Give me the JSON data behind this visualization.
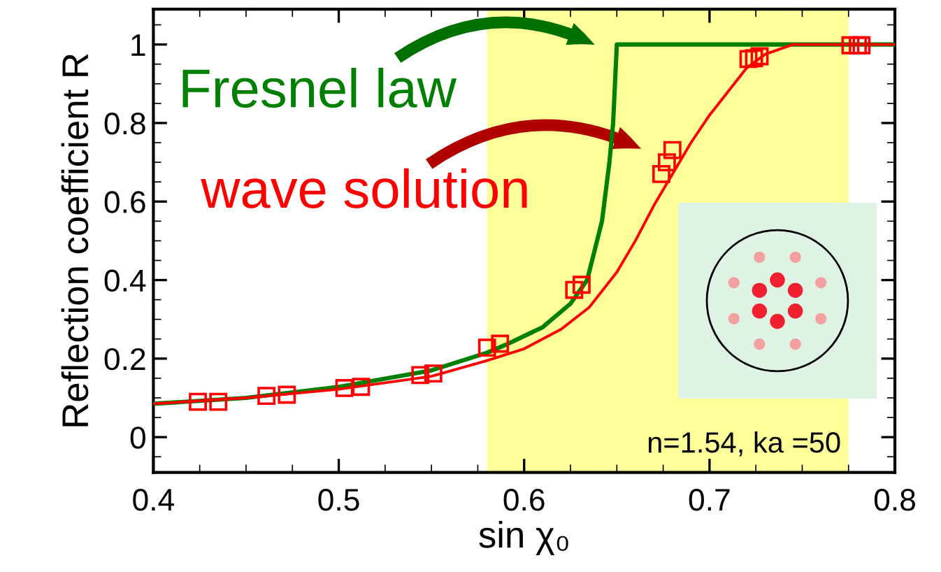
{
  "chart_data": {
    "type": "line",
    "xlabel": "sin χ₀",
    "ylabel": "Reflection coefficient R",
    "xlim": [
      0.4,
      0.8
    ],
    "xticks": [
      0.4,
      0.5,
      0.6,
      0.7,
      0.8
    ],
    "ylim": [
      -0.09,
      1.09
    ],
    "yticks": [
      0,
      0.2,
      0.4,
      0.6,
      0.8,
      1
    ],
    "grid": false,
    "legend": "top left",
    "bands": [
      {
        "axis": "x",
        "from": 0.58,
        "to": 0.775,
        "color": "#ffff99"
      }
    ],
    "series": [
      {
        "name": "Fresnel law",
        "color": "#008000",
        "marker": "none",
        "line_style": "solid",
        "x": [
          0.4,
          0.45,
          0.5,
          0.55,
          0.58,
          0.59,
          0.61,
          0.625,
          0.634,
          0.642,
          0.646,
          0.648,
          0.649,
          0.65,
          0.7,
          0.8
        ],
        "values": [
          0.085,
          0.1,
          0.128,
          0.17,
          0.215,
          0.235,
          0.28,
          0.34,
          0.4,
          0.55,
          0.7,
          0.8,
          0.9,
          1.0,
          1.0,
          1.0
        ]
      },
      {
        "name": "wave solution",
        "color": "#ff0000",
        "marker": "none",
        "line_style": "solid",
        "x": [
          0.4,
          0.45,
          0.5,
          0.55,
          0.58,
          0.6,
          0.62,
          0.635,
          0.65,
          0.66,
          0.67,
          0.68,
          0.69,
          0.7,
          0.71,
          0.72,
          0.73,
          0.745,
          0.8
        ],
        "values": [
          0.085,
          0.1,
          0.122,
          0.155,
          0.195,
          0.225,
          0.275,
          0.33,
          0.42,
          0.5,
          0.59,
          0.67,
          0.75,
          0.82,
          0.88,
          0.94,
          0.975,
          1.0,
          1.0
        ]
      },
      {
        "type": "scatter",
        "color": "#ff0000",
        "marker": "square",
        "x": [
          0.424,
          0.435,
          0.461,
          0.472,
          0.503,
          0.512,
          0.544,
          0.551,
          0.58,
          0.587,
          0.627,
          0.631,
          0.674,
          0.677,
          0.68,
          0.721,
          0.724,
          0.727,
          0.776,
          0.78,
          0.782
        ],
        "values": [
          0.09,
          0.09,
          0.105,
          0.108,
          0.125,
          0.128,
          0.158,
          0.162,
          0.228,
          0.238,
          0.375,
          0.388,
          0.67,
          0.7,
          0.731,
          0.963,
          0.965,
          0.97,
          0.998,
          0.998,
          0.998
        ]
      }
    ],
    "annotations": [
      "n=1.54, ka =50"
    ]
  }
}
